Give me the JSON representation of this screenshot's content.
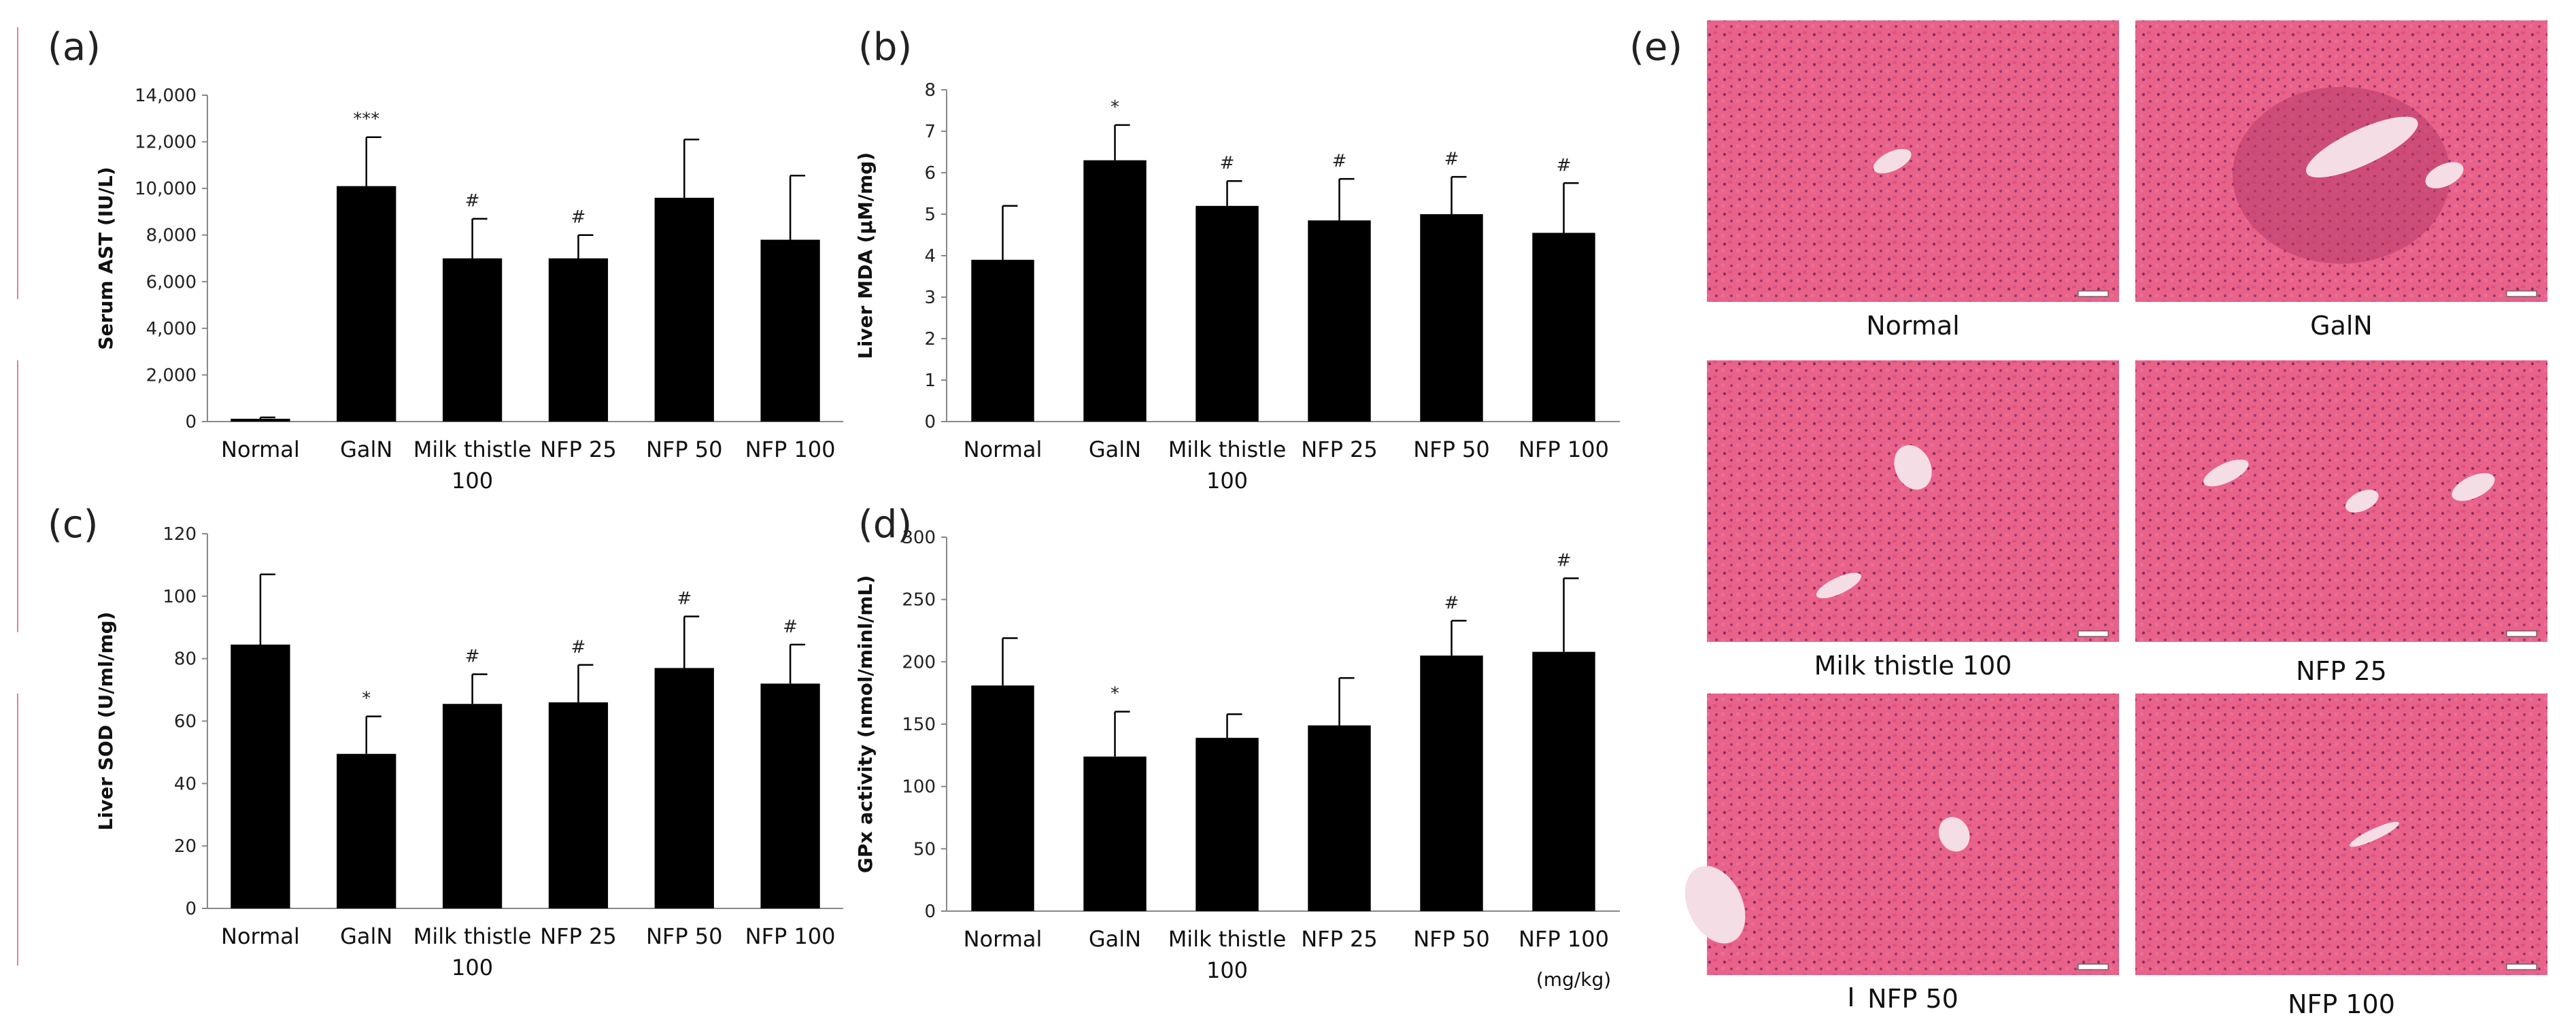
{
  "chart_data": [
    {
      "panel": "(a)",
      "type": "bar",
      "ylabel": "Serum AST (IU/L)",
      "ylim": [
        0,
        14000
      ],
      "ticks": [
        0,
        2000,
        4000,
        6000,
        8000,
        10000,
        12000,
        14000
      ],
      "tick_labels": [
        "0",
        "2,000",
        "4,000",
        "6,000",
        "8,000",
        "10,000",
        "12,000",
        "14,000"
      ],
      "categories": [
        "Normal",
        "GalN",
        "Milk thistle\n100",
        "NFP 25",
        "NFP 50",
        "NFP 100"
      ],
      "values": [
        120,
        10100,
        7000,
        7000,
        9600,
        7800
      ],
      "errors": [
        60,
        2100,
        1700,
        1000,
        2500,
        2750
      ],
      "marks": [
        "",
        "***",
        "#",
        "#",
        "",
        ""
      ]
    },
    {
      "panel": "(b)",
      "type": "bar",
      "ylabel": "Liver MDA (μM/mg)",
      "ylim": [
        0,
        8
      ],
      "ticks": [
        0,
        1,
        2,
        3,
        4,
        5,
        6,
        7,
        8
      ],
      "tick_labels": [
        "0",
        "1",
        "2",
        "3",
        "4",
        "5",
        "6",
        "7",
        "8"
      ],
      "categories": [
        "Normal",
        "GalN",
        "Milk thistle\n100",
        "NFP 25",
        "NFP 50",
        "NFP 100"
      ],
      "values": [
        3.9,
        6.3,
        5.2,
        4.85,
        5.0,
        4.55
      ],
      "errors": [
        1.3,
        0.85,
        0.6,
        1.0,
        0.9,
        1.2
      ],
      "marks": [
        "",
        "*",
        "#",
        "#",
        "#",
        "#"
      ]
    },
    {
      "panel": "(c)",
      "type": "bar",
      "ylabel": "Liver SOD (U/ml/mg)",
      "ylim": [
        0,
        120
      ],
      "ticks": [
        0,
        20,
        40,
        60,
        80,
        100,
        120
      ],
      "tick_labels": [
        "0",
        "20",
        "40",
        "60",
        "80",
        "100",
        "120"
      ],
      "categories": [
        "Normal",
        "GalN",
        "Milk thistle\n100",
        "NFP 25",
        "NFP 50",
        "NFP 100"
      ],
      "values": [
        84.5,
        49.5,
        65.5,
        66,
        77,
        72
      ],
      "errors": [
        22.5,
        12,
        9.5,
        12,
        16.5,
        12.5
      ],
      "marks": [
        "",
        "*",
        "#",
        "#",
        "#",
        "#"
      ]
    },
    {
      "panel": "(d)",
      "type": "bar",
      "ylabel": "GPx activity (nmol/minl/mL)",
      "ylim": [
        0,
        300
      ],
      "ticks": [
        0,
        50,
        100,
        150,
        200,
        250,
        300
      ],
      "tick_labels": [
        "0",
        "50",
        "100",
        "150",
        "200",
        "250",
        "300"
      ],
      "categories": [
        "Normal",
        "GalN",
        "Milk thistle\n100",
        "NFP 25",
        "NFP 50",
        "NFP 100"
      ],
      "values": [
        181,
        124,
        139,
        149,
        205,
        208
      ],
      "errors": [
        38,
        36,
        19,
        38,
        28,
        59
      ],
      "marks": [
        "",
        "*",
        "",
        "",
        "#",
        "#"
      ],
      "unit_note": "(mg/kg)"
    }
  ],
  "histology": {
    "panel": "(e)",
    "captions": [
      "Normal",
      "GalN",
      "Milk thistle 100",
      "NFP 25",
      "NFP 50",
      "NFP 100"
    ],
    "stray_mark": "I"
  },
  "colors": {
    "bar": "#000000",
    "tissue": "#e3567f",
    "tissue_dark": "#b83a6a",
    "vessel": "#f4dde4"
  }
}
